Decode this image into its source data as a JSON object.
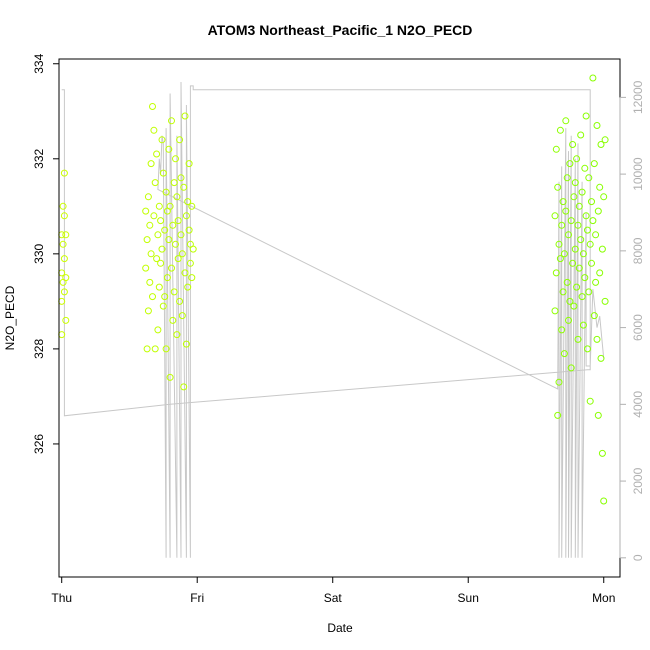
{
  "chart_data": {
    "type": "scatter",
    "title": "ATOM3 Northeast_Pacific_1 N2O_PECD",
    "xlabel": "Date",
    "ylabel": "N2O_PECD",
    "x_tick_labels": [
      "Thu",
      "Fri",
      "Sat",
      "Sun",
      "Mon"
    ],
    "xlim": [
      -0.02,
      4.12
    ],
    "ylim": [
      323.2,
      334.1
    ],
    "y_ticks": [
      326,
      328,
      330,
      332,
      334
    ],
    "y2_ticks": [
      0,
      2000,
      4000,
      6000,
      8000,
      10000,
      12000
    ],
    "y2lim": [
      -500,
      13000
    ],
    "grid": false,
    "colors": {
      "points_start": "#ccff00",
      "points_end": "#88ff00",
      "altitude_line": "#c8c8c8",
      "axis": "#000000",
      "right_axis": "#b0b0b0"
    },
    "series": [
      {
        "values": [
          [
            0.0,
            330.4
          ],
          [
            0.0,
            329.6
          ],
          [
            0.0,
            329.0
          ],
          [
            0.0,
            328.3
          ],
          [
            0.01,
            331.0
          ],
          [
            0.01,
            330.2
          ],
          [
            0.01,
            329.4
          ],
          [
            0.02,
            331.7
          ],
          [
            0.02,
            330.8
          ],
          [
            0.02,
            329.9
          ],
          [
            0.02,
            329.2
          ],
          [
            0.03,
            330.4
          ],
          [
            0.03,
            328.6
          ],
          [
            0.03,
            329.5
          ],
          [
            0.62,
            330.9
          ],
          [
            0.62,
            329.7
          ],
          [
            0.63,
            328.0
          ],
          [
            0.63,
            330.3
          ],
          [
            0.64,
            331.2
          ],
          [
            0.64,
            328.8
          ],
          [
            0.65,
            330.6
          ],
          [
            0.65,
            329.4
          ],
          [
            0.66,
            331.9
          ],
          [
            0.66,
            330.0
          ],
          [
            0.67,
            333.1
          ],
          [
            0.67,
            329.1
          ],
          [
            0.68,
            332.6
          ],
          [
            0.68,
            330.8
          ],
          [
            0.69,
            328.0
          ],
          [
            0.69,
            331.5
          ],
          [
            0.7,
            329.9
          ],
          [
            0.7,
            332.1
          ],
          [
            0.71,
            330.4
          ],
          [
            0.71,
            328.4
          ],
          [
            0.72,
            331.0
          ],
          [
            0.72,
            329.3
          ],
          [
            0.73,
            330.7
          ],
          [
            0.73,
            329.8
          ],
          [
            0.74,
            332.4
          ],
          [
            0.74,
            330.1
          ],
          [
            0.75,
            328.9
          ],
          [
            0.75,
            331.7
          ],
          [
            0.76,
            330.5
          ],
          [
            0.76,
            329.1
          ],
          [
            0.77,
            331.3
          ],
          [
            0.77,
            328.0
          ],
          [
            0.78,
            330.9
          ],
          [
            0.78,
            329.5
          ],
          [
            0.79,
            332.2
          ],
          [
            0.79,
            330.3
          ],
          [
            0.8,
            327.4
          ],
          [
            0.8,
            331.0
          ],
          [
            0.81,
            329.7
          ],
          [
            0.81,
            332.8
          ],
          [
            0.82,
            330.6
          ],
          [
            0.82,
            328.6
          ],
          [
            0.83,
            331.5
          ],
          [
            0.83,
            329.2
          ],
          [
            0.84,
            330.2
          ],
          [
            0.84,
            332.0
          ],
          [
            0.85,
            328.3
          ],
          [
            0.85,
            331.2
          ],
          [
            0.86,
            329.9
          ],
          [
            0.86,
            330.7
          ],
          [
            0.87,
            332.4
          ],
          [
            0.87,
            329.0
          ],
          [
            0.88,
            330.4
          ],
          [
            0.88,
            331.6
          ],
          [
            0.89,
            328.7
          ],
          [
            0.89,
            330.0
          ],
          [
            0.9,
            327.2
          ],
          [
            0.9,
            331.4
          ],
          [
            0.91,
            329.6
          ],
          [
            0.91,
            332.9
          ],
          [
            0.92,
            330.8
          ],
          [
            0.92,
            328.1
          ],
          [
            0.93,
            331.1
          ],
          [
            0.93,
            329.3
          ],
          [
            0.94,
            330.5
          ],
          [
            0.94,
            331.9
          ],
          [
            0.95,
            329.8
          ],
          [
            0.95,
            330.2
          ],
          [
            0.96,
            331.0
          ],
          [
            0.96,
            329.5
          ],
          [
            0.97,
            330.1
          ],
          [
            3.64,
            330.8
          ],
          [
            3.64,
            328.8
          ],
          [
            3.65,
            332.2
          ],
          [
            3.65,
            329.6
          ],
          [
            3.66,
            326.6
          ],
          [
            3.66,
            331.4
          ],
          [
            3.67,
            330.2
          ],
          [
            3.67,
            327.3
          ],
          [
            3.68,
            329.9
          ],
          [
            3.68,
            332.6
          ],
          [
            3.69,
            330.6
          ],
          [
            3.69,
            328.4
          ],
          [
            3.7,
            331.1
          ],
          [
            3.7,
            329.2
          ],
          [
            3.71,
            330.0
          ],
          [
            3.71,
            327.9
          ],
          [
            3.72,
            332.8
          ],
          [
            3.72,
            330.9
          ],
          [
            3.73,
            329.4
          ],
          [
            3.73,
            331.6
          ],
          [
            3.74,
            328.6
          ],
          [
            3.74,
            330.4
          ],
          [
            3.75,
            331.9
          ],
          [
            3.75,
            329.0
          ],
          [
            3.76,
            330.7
          ],
          [
            3.76,
            327.6
          ],
          [
            3.77,
            332.3
          ],
          [
            3.77,
            329.8
          ],
          [
            3.78,
            331.2
          ],
          [
            3.78,
            328.9
          ],
          [
            3.79,
            330.1
          ],
          [
            3.79,
            331.5
          ],
          [
            3.8,
            329.3
          ],
          [
            3.8,
            332.0
          ],
          [
            3.81,
            330.6
          ],
          [
            3.81,
            328.2
          ],
          [
            3.82,
            331.0
          ],
          [
            3.82,
            329.7
          ],
          [
            3.83,
            330.3
          ],
          [
            3.83,
            332.5
          ],
          [
            3.84,
            329.1
          ],
          [
            3.84,
            331.3
          ],
          [
            3.85,
            330.0
          ],
          [
            3.85,
            328.5
          ],
          [
            3.86,
            331.8
          ],
          [
            3.86,
            329.5
          ],
          [
            3.87,
            330.8
          ],
          [
            3.87,
            332.9
          ],
          [
            3.88,
            328.0
          ],
          [
            3.88,
            330.5
          ],
          [
            3.89,
            331.6
          ],
          [
            3.89,
            329.2
          ],
          [
            3.9,
            330.2
          ],
          [
            3.9,
            326.9
          ],
          [
            3.91,
            331.1
          ],
          [
            3.91,
            329.8
          ],
          [
            3.92,
            333.7
          ],
          [
            3.92,
            330.7
          ],
          [
            3.93,
            328.7
          ],
          [
            3.93,
            331.9
          ],
          [
            3.94,
            329.4
          ],
          [
            3.94,
            330.4
          ],
          [
            3.95,
            332.7
          ],
          [
            3.95,
            328.2
          ],
          [
            3.96,
            330.9
          ],
          [
            3.96,
            326.6
          ],
          [
            3.97,
            331.4
          ],
          [
            3.97,
            329.6
          ],
          [
            3.98,
            327.8
          ],
          [
            3.98,
            332.3
          ],
          [
            3.99,
            325.8
          ],
          [
            3.99,
            330.1
          ],
          [
            4.0,
            324.8
          ],
          [
            4.0,
            331.2
          ],
          [
            4.01,
            329.0
          ],
          [
            4.01,
            332.4
          ]
        ]
      },
      {
        "axis": "right",
        "values": [
          [
            0.0,
            12200
          ],
          [
            0.02,
            12200
          ],
          [
            0.02,
            3700
          ],
          [
            0.8,
            4000
          ],
          [
            3.88,
            4900
          ],
          [
            3.9,
            4900
          ],
          [
            3.9,
            12200
          ],
          [
            0.97,
            12200
          ],
          [
            0.97,
            12300
          ],
          [
            0.95,
            12300
          ],
          [
            0.95,
            0
          ],
          [
            0.92,
            11800
          ],
          [
            0.92,
            0
          ],
          [
            0.88,
            12400
          ],
          [
            0.88,
            0
          ],
          [
            0.85,
            11000
          ],
          [
            0.85,
            0
          ],
          [
            0.8,
            12100
          ],
          [
            0.8,
            0
          ],
          [
            0.77,
            11200
          ],
          [
            0.77,
            0
          ],
          [
            0.75,
            10800
          ],
          [
            0.74,
            11000
          ],
          [
            0.73,
            10000
          ],
          [
            0.72,
            10400
          ],
          [
            0.71,
            9600
          ],
          [
            3.66,
            4400
          ],
          [
            3.67,
            9800
          ],
          [
            3.67,
            0
          ],
          [
            3.69,
            10200
          ],
          [
            3.69,
            0
          ],
          [
            3.72,
            11200
          ],
          [
            3.72,
            0
          ],
          [
            3.74,
            10600
          ],
          [
            3.74,
            0
          ],
          [
            3.76,
            11000
          ],
          [
            3.76,
            0
          ],
          [
            3.79,
            10400
          ],
          [
            3.79,
            0
          ],
          [
            3.81,
            10800
          ],
          [
            3.81,
            0
          ],
          [
            3.84,
            9800
          ],
          [
            3.84,
            0
          ],
          [
            3.87,
            9000
          ],
          [
            3.87,
            5000
          ],
          [
            3.9,
            5000
          ],
          [
            3.92,
            7000
          ],
          [
            3.95,
            6000
          ],
          [
            3.97,
            6300
          ],
          [
            4.0,
            5200
          ]
        ]
      }
    ]
  }
}
